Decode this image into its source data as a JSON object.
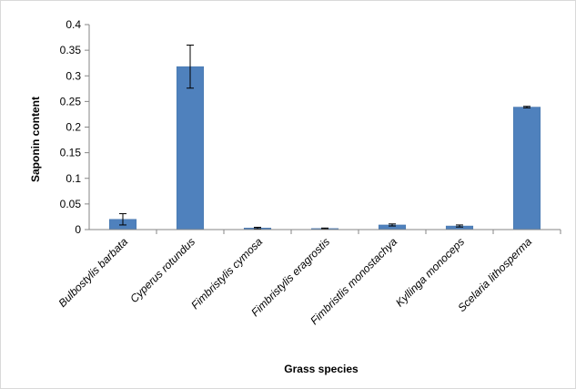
{
  "chart_data": {
    "type": "bar",
    "title": "",
    "xlabel": "Grass species",
    "ylabel": "Saponin content",
    "ylim": [
      0,
      0.4
    ],
    "yticks": [
      "0",
      "0.05",
      "0.1",
      "0.15",
      "0.2",
      "0.25",
      "0.3",
      "0.35",
      "0.4"
    ],
    "grid": false,
    "legend": "none",
    "bar_color": "#4f81bd",
    "categories": [
      "Bulbostylis barbata",
      "Cyperus rotundus",
      "Fimbristylis cymosa",
      "Fimbristylis eragrostis",
      "Fimbristlis monostachya",
      "Kyllinga monoceps",
      "Scelaria lithosperma"
    ],
    "values": [
      0.02,
      0.318,
      0.003,
      0.002,
      0.009,
      0.007,
      0.239
    ],
    "errors": [
      0.011,
      0.042,
      0.0015,
      0.001,
      0.002,
      0.002,
      0.0015
    ]
  }
}
